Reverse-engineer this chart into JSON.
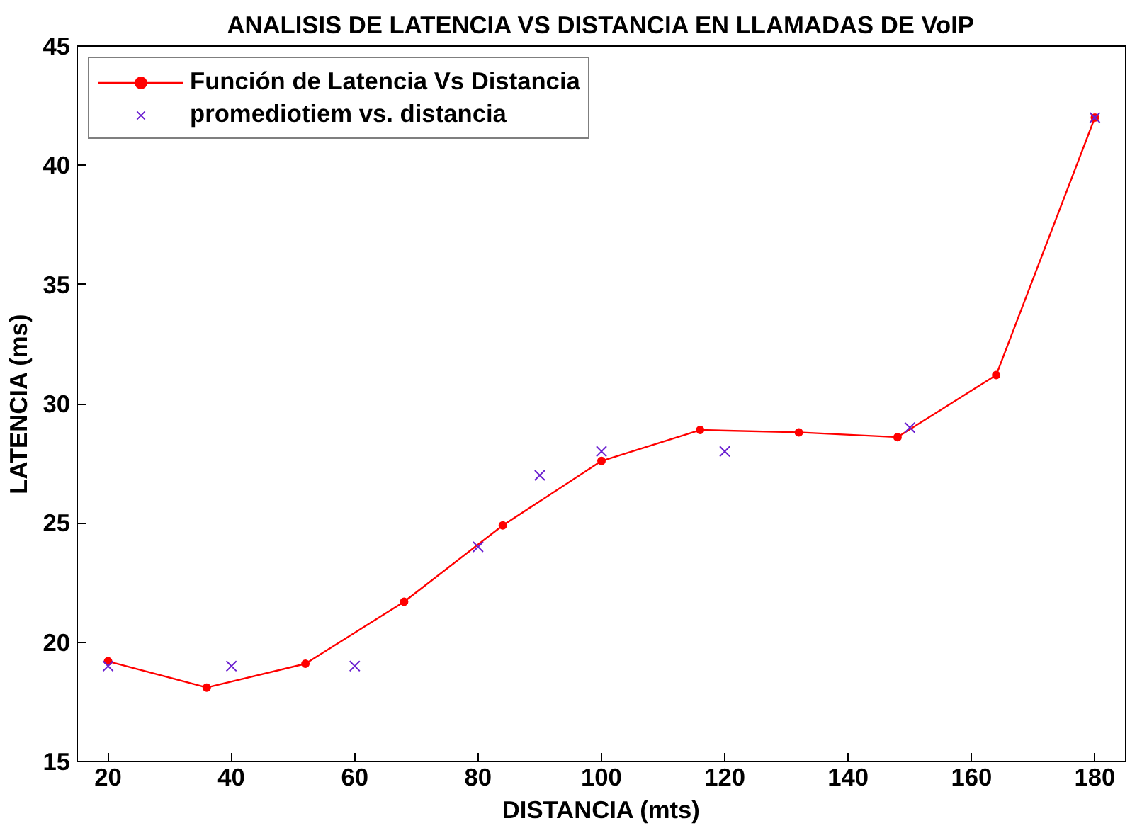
{
  "chart_data": {
    "type": "line",
    "title": "ANALISIS DE LATENCIA VS DISTANCIA EN LLAMADAS DE VoIP",
    "xlabel": "DISTANCIA (mts)",
    "ylabel": "LATENCIA (ms)",
    "xlim": [
      15,
      185
    ],
    "ylim": [
      15,
      45
    ],
    "xticks": [
      20,
      40,
      60,
      80,
      100,
      120,
      140,
      160,
      180
    ],
    "yticks": [
      15,
      20,
      25,
      30,
      35,
      40,
      45
    ],
    "grid": false,
    "legend": "top left",
    "series": [
      {
        "name": "Función de Latencia Vs Distancia",
        "color": "#ff0000",
        "marker": "circle",
        "line_style": "solid",
        "x": [
          20,
          36,
          52,
          68,
          84,
          100,
          116,
          132,
          148,
          164,
          180
        ],
        "values": [
          19.2,
          18.1,
          19.1,
          21.7,
          24.9,
          27.6,
          28.9,
          28.8,
          28.6,
          31.2,
          42.0
        ]
      },
      {
        "name": "promediotiem vs. distancia",
        "type": "scatter",
        "color": "#6a1fd0",
        "marker": "cross",
        "x": [
          20,
          40,
          60,
          80,
          90,
          100,
          120,
          150,
          180
        ],
        "values": [
          19,
          19,
          19,
          24,
          27,
          28,
          28,
          29,
          42
        ]
      }
    ]
  }
}
